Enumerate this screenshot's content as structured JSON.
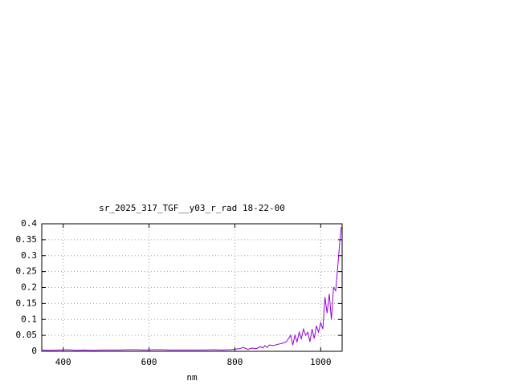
{
  "chart_data": {
    "type": "line",
    "title": "sr_2025_317_TGF__y03_r_rad 18-22-00",
    "x_label": "nm",
    "x": [
      350,
      370,
      390,
      410,
      430,
      450,
      470,
      490,
      510,
      530,
      550,
      570,
      590,
      610,
      630,
      650,
      670,
      690,
      710,
      730,
      750,
      770,
      790,
      810,
      820,
      830,
      840,
      850,
      860,
      865,
      870,
      875,
      880,
      890,
      900,
      910,
      920,
      930,
      935,
      940,
      945,
      950,
      955,
      960,
      965,
      970,
      975,
      980,
      985,
      990,
      995,
      1000,
      1005,
      1010,
      1015,
      1020,
      1025,
      1030,
      1035,
      1040,
      1045,
      1048
    ],
    "series": [
      {
        "name": "sr_2025_317_TGF__y03_r_rad",
        "color": "#9400d3",
        "values": [
          0.004,
          0.003,
          0.004,
          0.005,
          0.003,
          0.004,
          0.003,
          0.004,
          0.004,
          0.004,
          0.005,
          0.005,
          0.004,
          0.005,
          0.005,
          0.004,
          0.004,
          0.004,
          0.004,
          0.004,
          0.005,
          0.004,
          0.005,
          0.008,
          0.012,
          0.006,
          0.01,
          0.008,
          0.015,
          0.01,
          0.018,
          0.012,
          0.02,
          0.018,
          0.022,
          0.025,
          0.03,
          0.05,
          0.02,
          0.05,
          0.03,
          0.06,
          0.04,
          0.07,
          0.05,
          0.06,
          0.03,
          0.07,
          0.04,
          0.08,
          0.06,
          0.09,
          0.07,
          0.17,
          0.12,
          0.18,
          0.1,
          0.2,
          0.19,
          0.27,
          0.35,
          0.39
        ]
      }
    ],
    "xlim": [
      350,
      1050
    ],
    "ylim": [
      0,
      0.4
    ],
    "xticks": [
      400,
      600,
      800,
      1000
    ],
    "yticks": [
      0,
      0.05,
      0.1,
      0.15,
      0.2,
      0.25,
      0.3,
      0.35,
      0.4
    ],
    "grid": true
  }
}
